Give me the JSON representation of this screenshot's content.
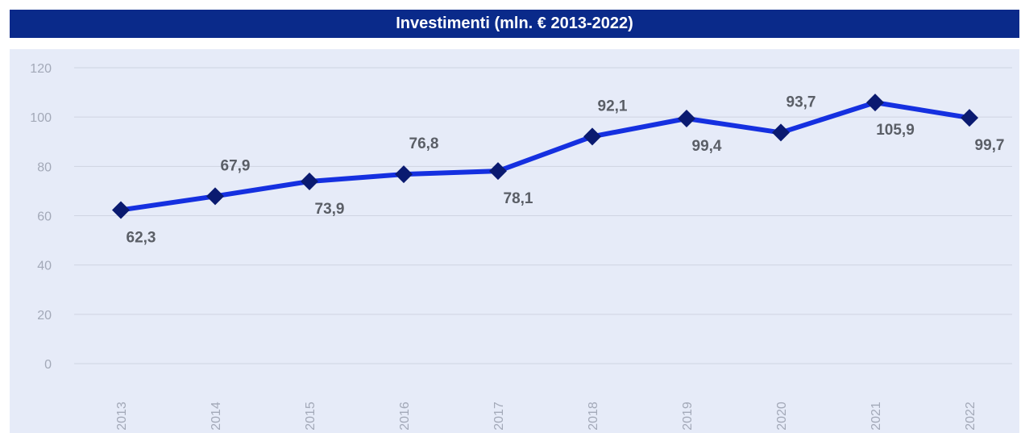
{
  "title": "Investimenti (mln. € 2013-2022)",
  "chart_data": {
    "type": "line",
    "title": "Investimenti (mln. € 2013-2022)",
    "xlabel": "",
    "ylabel": "",
    "ylim": [
      0,
      120
    ],
    "yticks": [
      "0",
      "20",
      "40",
      "60",
      "80",
      "100",
      "120"
    ],
    "categories": [
      "2013",
      "2014",
      "2015",
      "2016",
      "2017",
      "2018",
      "2019",
      "2020",
      "2021",
      "2022"
    ],
    "values": [
      62.3,
      67.9,
      73.9,
      76.8,
      78.1,
      92.1,
      99.4,
      93.7,
      105.9,
      99.7
    ],
    "labels": [
      "62,3",
      "67,9",
      "73,9",
      "76,8",
      "78,1",
      "92,1",
      "99,4",
      "93,7",
      "105,9",
      "99,7"
    ],
    "label_positions": [
      "below",
      "above",
      "below",
      "above",
      "below",
      "above",
      "below",
      "above",
      "below",
      "below"
    ],
    "grid": true,
    "line_color": "#1530e0",
    "marker_color": "#0a1a70"
  }
}
